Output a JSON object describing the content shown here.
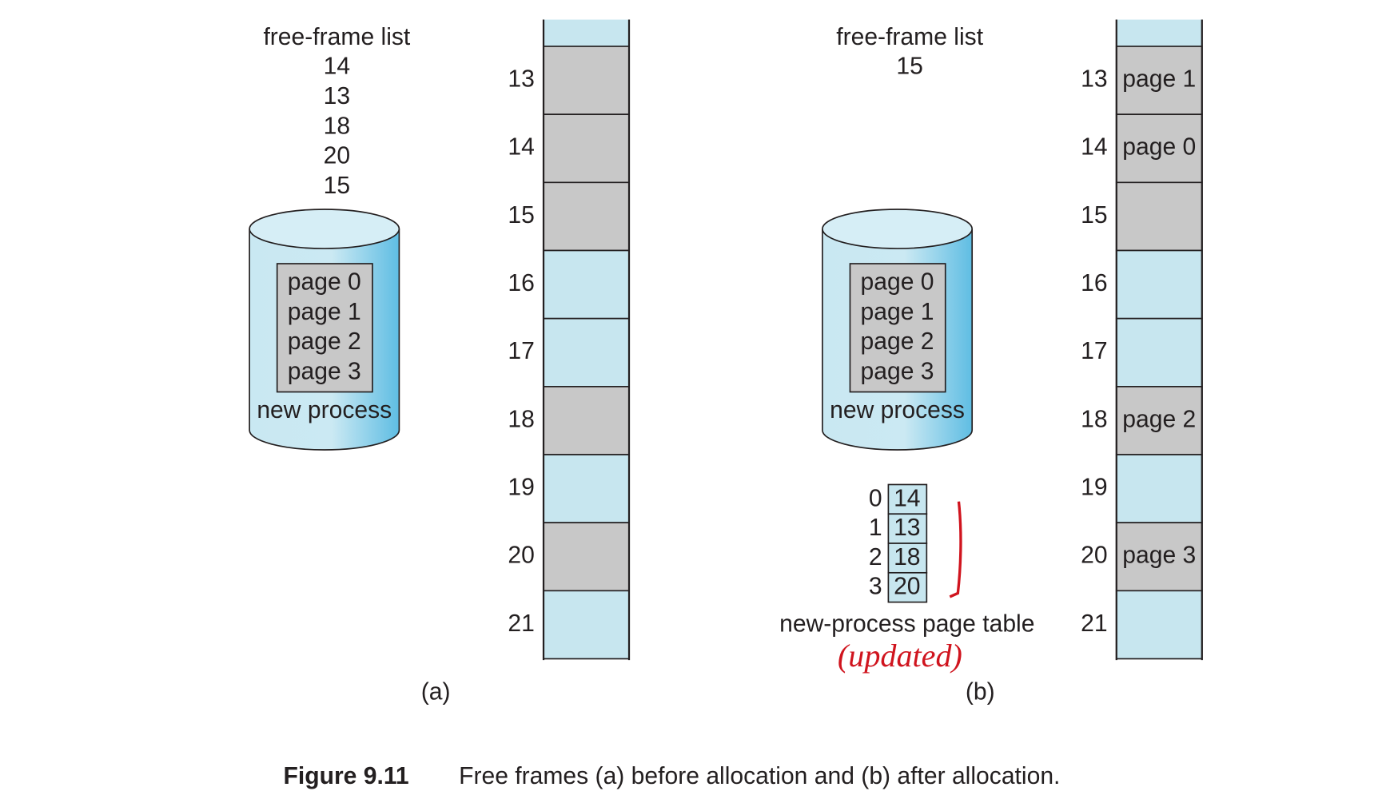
{
  "panels": [
    {
      "free_list_title": "free-frame list",
      "free_list": [
        14,
        13,
        18,
        20,
        15
      ],
      "disk": {
        "pages": [
          "page 0",
          "page 1",
          "page 2",
          "page 3"
        ],
        "label": "new process"
      },
      "memory": {
        "frames": [
          {
            "number": 13,
            "color": "#c8c8c8"
          },
          {
            "number": 14,
            "color": "#c8c8c8"
          },
          {
            "number": 15,
            "color": "#c8c8c8"
          },
          {
            "number": 16,
            "color": "#c7e6ef"
          },
          {
            "number": 17,
            "color": "#c7e6ef"
          },
          {
            "number": 18,
            "color": "#c8c8c8"
          },
          {
            "number": 19,
            "color": "#c7e6ef"
          },
          {
            "number": 20,
            "color": "#c8c8c8"
          },
          {
            "number": 21,
            "color": "#c7e6ef"
          }
        ]
      },
      "caption": "(a)"
    },
    {
      "free_list_title": "free-frame list",
      "free_list": [
        15
      ],
      "disk": {
        "pages": [
          "page 0",
          "page 1",
          "page 2",
          "page 3"
        ],
        "label": "new process"
      },
      "memory": {
        "frames": [
          {
            "number": 13,
            "color": "#c8c8c8",
            "content": "page 1"
          },
          {
            "number": 14,
            "color": "#c8c8c8",
            "content": "page 0"
          },
          {
            "number": 15,
            "color": "#c8c8c8"
          },
          {
            "number": 16,
            "color": "#c7e6ef"
          },
          {
            "number": 17,
            "color": "#c7e6ef"
          },
          {
            "number": 18,
            "color": "#c8c8c8",
            "content": "page 2"
          },
          {
            "number": 19,
            "color": "#c7e6ef"
          },
          {
            "number": 20,
            "color": "#c8c8c8",
            "content": "page 3"
          },
          {
            "number": 21,
            "color": "#c7e6ef"
          }
        ]
      },
      "page_table": {
        "rows": [
          {
            "index": 0,
            "frame": 14
          },
          {
            "index": 1,
            "frame": 13
          },
          {
            "index": 2,
            "frame": 18
          },
          {
            "index": 3,
            "frame": 20
          }
        ],
        "title": "new-process page table",
        "note": "(updated)"
      },
      "caption": "(b)"
    }
  ],
  "figure": {
    "label": "Figure 9.11",
    "caption": "Free frames (a) before allocation and (b) after allocation."
  }
}
